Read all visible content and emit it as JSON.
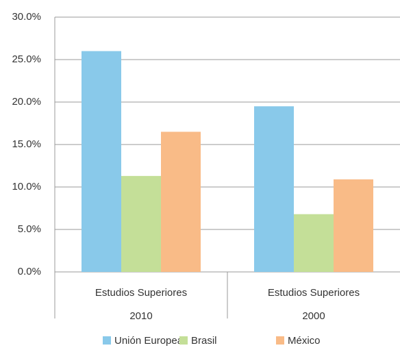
{
  "chart_data": {
    "type": "bar",
    "categories": [
      [
        "Estudios Superiores",
        "2010"
      ],
      [
        "Estudios Superiores",
        "2000"
      ]
    ],
    "series": [
      {
        "name": "Unión Europea",
        "color": "#89c9ea",
        "values": [
          26.0,
          19.5
        ]
      },
      {
        "name": "Brasil",
        "color": "#c4df98",
        "values": [
          11.3,
          6.8
        ]
      },
      {
        "name": "México",
        "color": "#f9bb87",
        "values": [
          16.5,
          10.9
        ]
      }
    ],
    "ylim": [
      0,
      30
    ],
    "yticks": [
      {
        "value": 0,
        "label": "0.0%"
      },
      {
        "value": 5,
        "label": "5.0%"
      },
      {
        "value": 10,
        "label": "10.0%"
      },
      {
        "value": 15,
        "label": "15.0%"
      },
      {
        "value": 20,
        "label": "20.0%"
      },
      {
        "value": 25,
        "label": "25.0%"
      },
      {
        "value": 30,
        "label": "30.0%"
      }
    ],
    "grid": true,
    "legend": "bottom"
  }
}
